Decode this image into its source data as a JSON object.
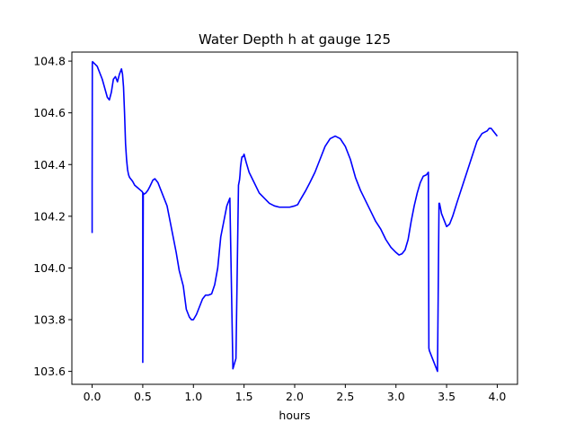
{
  "chart_data": {
    "type": "line",
    "title": "Water Depth h at gauge 125",
    "xlabel": "hours",
    "ylabel": "",
    "xlim": [
      -0.2,
      4.2
    ],
    "ylim": [
      103.55,
      104.835
    ],
    "xticks": [
      0.0,
      0.5,
      1.0,
      1.5,
      2.0,
      2.5,
      3.0,
      3.5,
      4.0
    ],
    "xtick_labels": [
      "0.0",
      "0.5",
      "1.0",
      "1.5",
      "2.0",
      "2.5",
      "3.0",
      "3.5",
      "4.0"
    ],
    "yticks": [
      103.6,
      103.8,
      104.0,
      104.2,
      104.4,
      104.6,
      104.8
    ],
    "ytick_labels": [
      "103.6",
      "103.8",
      "104.0",
      "104.2",
      "104.4",
      "104.6",
      "104.8"
    ],
    "grid": false,
    "line_color": "#0000ff",
    "series": [
      {
        "x": [
          0.0,
          0.0,
          0.002,
          0.004,
          0.006,
          0.05,
          0.1,
          0.15,
          0.17,
          0.19,
          0.21,
          0.23,
          0.25,
          0.27,
          0.29,
          0.3,
          0.31,
          0.32,
          0.33,
          0.34,
          0.35,
          0.36,
          0.37,
          0.38,
          0.39,
          0.4,
          0.42,
          0.45,
          0.48,
          0.495,
          0.5,
          0.5,
          0.505,
          0.51,
          0.53,
          0.55,
          0.57,
          0.6,
          0.62,
          0.65,
          0.68,
          0.71,
          0.74,
          0.77,
          0.8,
          0.83,
          0.86,
          0.88,
          0.9,
          0.93,
          0.96,
          0.98,
          1.0,
          1.03,
          1.06,
          1.09,
          1.12,
          1.15,
          1.18,
          1.21,
          1.24,
          1.27,
          1.3,
          1.33,
          1.36,
          1.39,
          1.42,
          1.445,
          1.455,
          1.46,
          1.465,
          1.475,
          1.48,
          1.49,
          1.5,
          1.52,
          1.55,
          1.6,
          1.65,
          1.7,
          1.75,
          1.8,
          1.85,
          1.9,
          1.95,
          2.0,
          2.03,
          2.05,
          2.08,
          2.11,
          2.15,
          2.2,
          2.25,
          2.3,
          2.35,
          2.4,
          2.45,
          2.5,
          2.55,
          2.6,
          2.65,
          2.7,
          2.75,
          2.8,
          2.85,
          2.9,
          2.95,
          3.0,
          3.03,
          3.06,
          3.09,
          3.12,
          3.15,
          3.18,
          3.21,
          3.24,
          3.27,
          3.3,
          3.32,
          3.325,
          3.33,
          3.35,
          3.38,
          3.41,
          3.425,
          3.43,
          3.435,
          3.45,
          3.48,
          3.5,
          3.53,
          3.56,
          3.6,
          3.65,
          3.7,
          3.75,
          3.8,
          3.85,
          3.9,
          3.92,
          3.94,
          3.96,
          3.98,
          4.0
        ],
        "y": [
          104.135,
          104.33,
          104.795,
          104.798,
          104.797,
          104.78,
          104.73,
          104.66,
          104.65,
          104.68,
          104.73,
          104.74,
          104.72,
          104.75,
          104.77,
          104.75,
          104.7,
          104.6,
          104.48,
          104.42,
          104.38,
          104.36,
          104.35,
          104.345,
          104.34,
          104.335,
          104.32,
          104.31,
          104.3,
          104.295,
          104.29,
          103.635,
          104.29,
          104.285,
          104.29,
          104.3,
          104.315,
          104.34,
          104.345,
          104.33,
          104.3,
          104.27,
          104.24,
          104.18,
          104.12,
          104.06,
          103.99,
          103.96,
          103.93,
          103.84,
          103.81,
          103.8,
          103.8,
          103.82,
          103.85,
          103.88,
          103.895,
          103.895,
          103.9,
          103.935,
          104.0,
          104.12,
          104.18,
          104.24,
          104.27,
          103.61,
          103.65,
          104.32,
          104.34,
          104.36,
          104.39,
          104.42,
          104.43,
          104.43,
          104.44,
          104.41,
          104.37,
          104.33,
          104.29,
          104.27,
          104.25,
          104.24,
          104.235,
          104.235,
          104.235,
          104.24,
          104.245,
          104.26,
          104.28,
          104.3,
          104.33,
          104.37,
          104.42,
          104.47,
          104.5,
          104.51,
          104.5,
          104.47,
          104.42,
          104.35,
          104.3,
          104.26,
          104.22,
          104.18,
          104.15,
          104.11,
          104.08,
          104.06,
          104.05,
          104.055,
          104.07,
          104.11,
          104.18,
          104.24,
          104.29,
          104.33,
          104.355,
          104.36,
          104.37,
          103.69,
          103.68,
          103.66,
          103.63,
          103.6,
          104.25,
          104.25,
          104.24,
          104.21,
          104.18,
          104.16,
          104.17,
          104.2,
          104.25,
          104.31,
          104.37,
          104.43,
          104.49,
          104.52,
          104.53,
          104.54,
          104.54,
          104.53,
          104.52,
          104.51
        ]
      }
    ]
  }
}
